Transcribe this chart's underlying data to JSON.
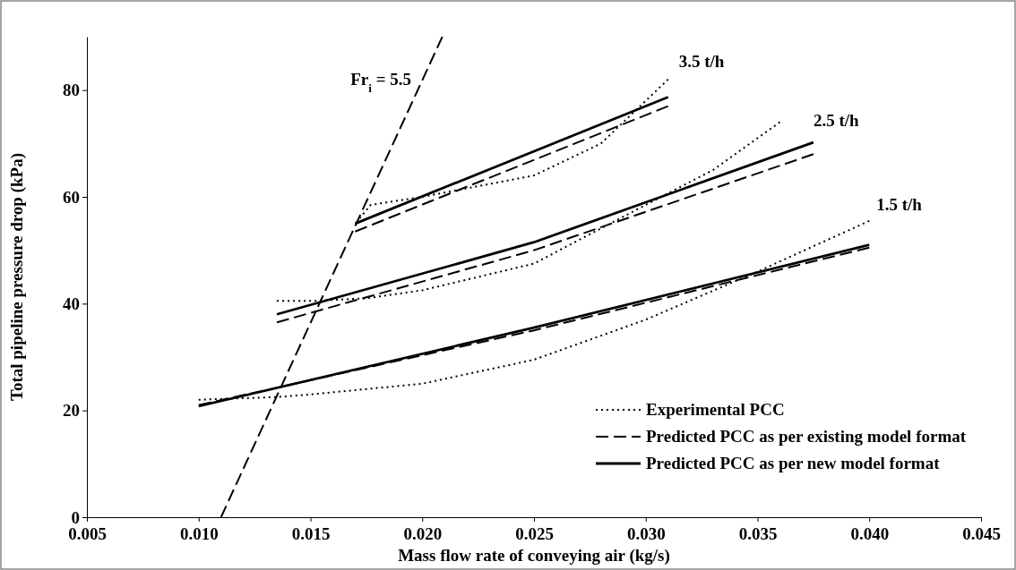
{
  "chart_data": {
    "type": "line",
    "xlabel": "Mass flow rate of conveying air (kg/s)",
    "ylabel": "Total pipeline pressure drop (kPa)",
    "xlim": [
      0.005,
      0.045
    ],
    "xticks": [
      {
        "value": 0.005,
        "label": "0.005"
      },
      {
        "value": 0.01,
        "label": "0.010"
      },
      {
        "value": 0.015,
        "label": "0.015"
      },
      {
        "value": 0.02,
        "label": "0.020"
      },
      {
        "value": 0.025,
        "label": "0.025"
      },
      {
        "value": 0.03,
        "label": "0.030"
      },
      {
        "value": 0.035,
        "label": "0.035"
      },
      {
        "value": 0.04,
        "label": "0.040"
      },
      {
        "value": 0.045,
        "label": "0.045"
      }
    ],
    "ylim": [
      0,
      90
    ],
    "yticks": [
      0,
      20,
      40,
      60,
      80
    ],
    "grid": false,
    "legend": "bottom right",
    "marker": "none",
    "series": [
      {
        "name": "Experimental PCC",
        "color": "#000000",
        "line_style": "dotted",
        "x": [
          0.01,
          0.0135,
          0.015,
          0.02,
          0.025,
          0.03,
          0.035,
          0.04
        ],
        "values": [
          22,
          22.5,
          23,
          25,
          29.5,
          37,
          46,
          55.5
        ]
      },
      {
        "name": "Predicted PCC as per existing model format",
        "color": "#000000",
        "line_style": "dashed",
        "x": [
          0.01,
          0.025,
          0.04
        ],
        "values": [
          21,
          35,
          50.5
        ]
      },
      {
        "name": "Predicted PCC as per new model format",
        "color": "#000000",
        "line_style": "solid",
        "x": [
          0.01,
          0.025,
          0.04
        ],
        "values": [
          20.8,
          35.5,
          51
        ]
      },
      {
        "color": "#000000",
        "line_style": "dotted",
        "x": [
          0.0135,
          0.015,
          0.0175,
          0.02,
          0.025,
          0.03,
          0.033,
          0.036
        ],
        "values": [
          40.5,
          40.5,
          41,
          42.5,
          47.5,
          58.5,
          65,
          74
        ]
      },
      {
        "color": "#000000",
        "line_style": "dashed",
        "x": [
          0.0135,
          0.025,
          0.0375
        ],
        "values": [
          36.5,
          50,
          68
        ]
      },
      {
        "color": "#000000",
        "line_style": "solid",
        "x": [
          0.0135,
          0.025,
          0.0375
        ],
        "values": [
          38,
          51.5,
          70.2
        ]
      },
      {
        "color": "#000000",
        "line_style": "dotted",
        "x": [
          0.0172,
          0.0177,
          0.02,
          0.025,
          0.028,
          0.031
        ],
        "values": [
          56,
          58.5,
          60,
          64,
          70,
          82
        ]
      },
      {
        "color": "#000000",
        "line_style": "dashed",
        "x": [
          0.017,
          0.031
        ],
        "values": [
          53.5,
          77
        ]
      },
      {
        "color": "#000000",
        "line_style": "solid",
        "x": [
          0.017,
          0.031
        ],
        "values": [
          55,
          78.7
        ]
      },
      {
        "color": "#000000",
        "line_style": "dashed",
        "x": [
          0.011,
          0.0209
        ],
        "values": [
          0,
          90
        ]
      }
    ],
    "annotations": [
      {
        "text": "3.5 t/h",
        "x": 0.031,
        "y": 82
      },
      {
        "text": "2.5 t/h",
        "x": 0.0375,
        "y": 70.2
      },
      {
        "text": "1.5 t/h",
        "x": 0.04,
        "y": 55.5
      },
      {
        "text": "Fr$_{i}$ = 5.5",
        "x": 0.01991,
        "y": 81
      }
    ]
  }
}
